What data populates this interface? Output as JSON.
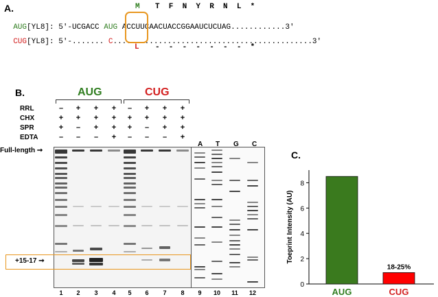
{
  "panelA": {
    "label": "A.",
    "aug_name": "AUG",
    "aug_suffix": "[YL8]:",
    "aug_seq_prefix": "5′-UCGACC",
    "aug_codon": "AUG",
    "aug_seq_rest": "ACCUUCAACUACCGGAAUCUCUAG",
    "aug_seq_end": "............3′",
    "cug_name": "CUG",
    "cug_suffix": "[YL8]:",
    "cug_seq_prefix": "5′-.......",
    "cug_codon_letter": "C",
    "cug_codon_dots": "..",
    "cug_seq_rest": "..........................................3′",
    "top_aa_first": "M",
    "top_aa_rest": "T  F  N  Y  R  N  L  *",
    "bottom_aa_first": "L",
    "bottom_aa_rest": "-  -  -  -  -  -  -  *"
  },
  "panelB": {
    "label": "B.",
    "group_aug": "AUG",
    "group_cug": "CUG",
    "row_labels": [
      "RRL",
      "CHX",
      "SPR",
      "EDTA"
    ],
    "rows": {
      "RRL": [
        "–",
        "+",
        "+",
        "+",
        "–",
        "+",
        "+",
        "+"
      ],
      "CHX": [
        "+",
        "+",
        "+",
        "+",
        "+",
        "+",
        "+",
        "+"
      ],
      "SPR": [
        "+",
        "–",
        "+",
        "+",
        "+",
        "–",
        "+",
        "+"
      ],
      "EDTA": [
        "–",
        "–",
        "–",
        "+",
        "–",
        "–",
        "–",
        "+"
      ]
    },
    "ladder_labels": [
      "A",
      "T",
      "G",
      "C"
    ],
    "full_length_label": "Full-length",
    "toeprint_label": "+15-17",
    "lane_numbers": [
      "1",
      "2",
      "3",
      "4",
      "5",
      "6",
      "7",
      "8",
      "9",
      "10",
      "11",
      "12"
    ]
  },
  "panelC": {
    "label": "C."
  },
  "chart_data": {
    "type": "bar",
    "categories": [
      "AUG",
      "CUG"
    ],
    "values": [
      8.5,
      0.9
    ],
    "colors": [
      "#3a7a1e",
      "#ff0000"
    ],
    "ylabel": "Toeprint Intensity (AU)",
    "ylim": [
      0,
      9
    ],
    "yticks": [
      "0",
      "2",
      "4",
      "6",
      "8"
    ],
    "annotation": "18-25%",
    "grid": false
  }
}
